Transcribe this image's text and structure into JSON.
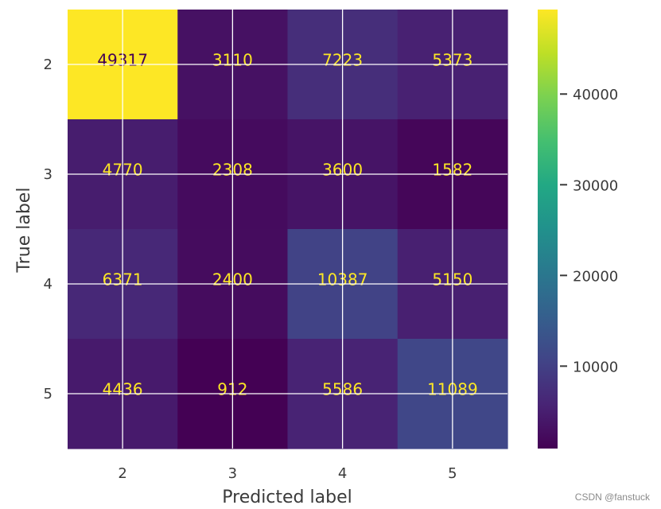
{
  "chart_data": {
    "type": "heatmap",
    "title": "",
    "xlabel": "Predicted label",
    "ylabel": "True label",
    "x_categories": [
      "2",
      "3",
      "4",
      "5"
    ],
    "y_categories": [
      "2",
      "3",
      "4",
      "5"
    ],
    "values": [
      [
        49317,
        3110,
        7223,
        5373
      ],
      [
        4770,
        2308,
        3600,
        1582
      ],
      [
        6371,
        2400,
        10387,
        5150
      ],
      [
        4436,
        912,
        5586,
        11089
      ]
    ],
    "colormap": "viridis",
    "colorbar": {
      "ticks": [
        "10000",
        "20000",
        "30000",
        "40000"
      ],
      "min": 912,
      "max": 49317
    },
    "grid": true,
    "label_colors": {
      "on_dark": "#fde725",
      "on_light": "#440154"
    }
  },
  "watermark": "CSDN @fanstuck"
}
